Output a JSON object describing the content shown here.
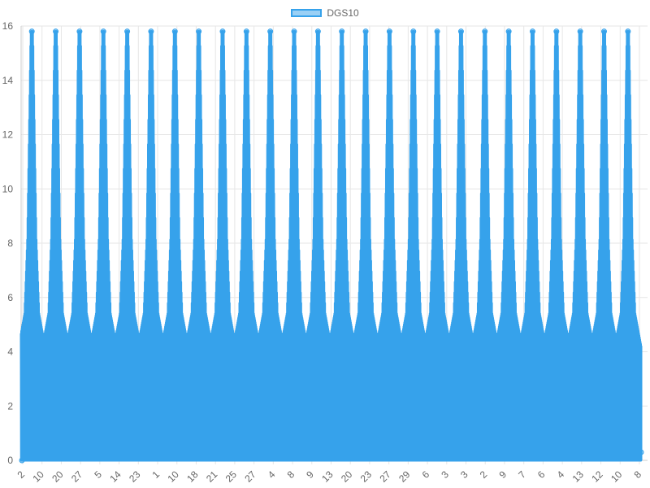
{
  "chart_data": {
    "type": "area",
    "title": "",
    "xlabel": "",
    "ylabel": "",
    "legend": {
      "position": "top",
      "entries": [
        "DGS10"
      ]
    },
    "grid": true,
    "ylim": [
      0,
      16
    ],
    "y_ticks": [
      0,
      2,
      4,
      6,
      8,
      10,
      12,
      14,
      16
    ],
    "x_tick_labels": [
      "2",
      "10",
      "20",
      "27",
      "5",
      "14",
      "23",
      "1",
      "10",
      "18",
      "21",
      "25",
      "27",
      "4",
      "8",
      "9",
      "13",
      "20",
      "23",
      "27",
      "29",
      "6",
      "3",
      "3",
      "2",
      "9",
      "7",
      "6",
      "4",
      "13",
      "12",
      "10",
      "8"
    ],
    "series": [
      {
        "name": "DGS10",
        "color": "#36a2eb",
        "fill": "rgba(54,162,235,0.5)",
        "cycle_count": 26,
        "cycle_peak_values": [
          15.8,
          15.8,
          15.8,
          15.8,
          15.8,
          15.8,
          15.8,
          15.8,
          15.8,
          15.8,
          15.8,
          15.8,
          15.8,
          15.8,
          15.8,
          15.8,
          15.8,
          15.8,
          15.8,
          15.8,
          15.8,
          15.8,
          15.8,
          15.8,
          15.8,
          15.8
        ],
        "cycle_min_value": 0,
        "cycle_base_band_value": 4.2,
        "shoulder_values": [
          8.2,
          5.4
        ]
      }
    ]
  }
}
